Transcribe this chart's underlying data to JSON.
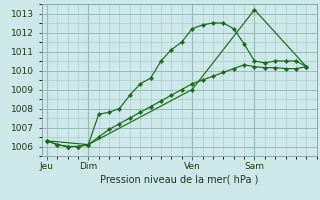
{
  "background_color": "#cce8e8",
  "grid_color": "#b0cccc",
  "grid_color_dark": "#99bbbb",
  "line_color": "#1a6b1a",
  "marker_color": "#1a6b1a",
  "xlabel": "Pression niveau de la mer( hPa )",
  "ylim": [
    1005.5,
    1013.5
  ],
  "yticks": [
    1006,
    1007,
    1008,
    1009,
    1010,
    1011,
    1012,
    1013
  ],
  "day_labels": [
    "Jeu",
    "Dim",
    "Ven",
    "Sam"
  ],
  "day_positions": [
    0,
    4,
    14,
    20
  ],
  "xlim": [
    -0.5,
    26
  ],
  "series1_x": [
    0,
    1,
    2,
    3,
    4,
    5,
    6,
    7,
    8,
    9,
    10,
    11,
    12,
    13,
    14,
    15,
    16,
    17,
    18,
    19,
    20,
    21,
    22,
    23,
    24,
    25
  ],
  "series1_y": [
    1006.3,
    1006.1,
    1006.0,
    1006.0,
    1006.1,
    1007.7,
    1007.8,
    1008.0,
    1008.7,
    1009.3,
    1009.6,
    1010.5,
    1011.1,
    1011.5,
    1012.2,
    1012.4,
    1012.5,
    1012.5,
    1012.2,
    1011.4,
    1010.5,
    1010.4,
    1010.5,
    1010.5,
    1010.5,
    1010.2
  ],
  "series2_x": [
    0,
    4,
    14,
    20,
    25
  ],
  "series2_y": [
    1006.3,
    1006.1,
    1009.0,
    1013.2,
    1010.2
  ],
  "series3_x": [
    0,
    1,
    2,
    3,
    4,
    5,
    6,
    7,
    8,
    9,
    10,
    11,
    12,
    13,
    14,
    15,
    16,
    17,
    18,
    19,
    20,
    21,
    22,
    23,
    24,
    25
  ],
  "series3_y": [
    1006.3,
    1006.1,
    1006.0,
    1006.0,
    1006.1,
    1006.5,
    1006.9,
    1007.2,
    1007.5,
    1007.8,
    1008.1,
    1008.4,
    1008.7,
    1009.0,
    1009.3,
    1009.5,
    1009.7,
    1009.9,
    1010.1,
    1010.3,
    1010.2,
    1010.15,
    1010.15,
    1010.1,
    1010.1,
    1010.2
  ]
}
